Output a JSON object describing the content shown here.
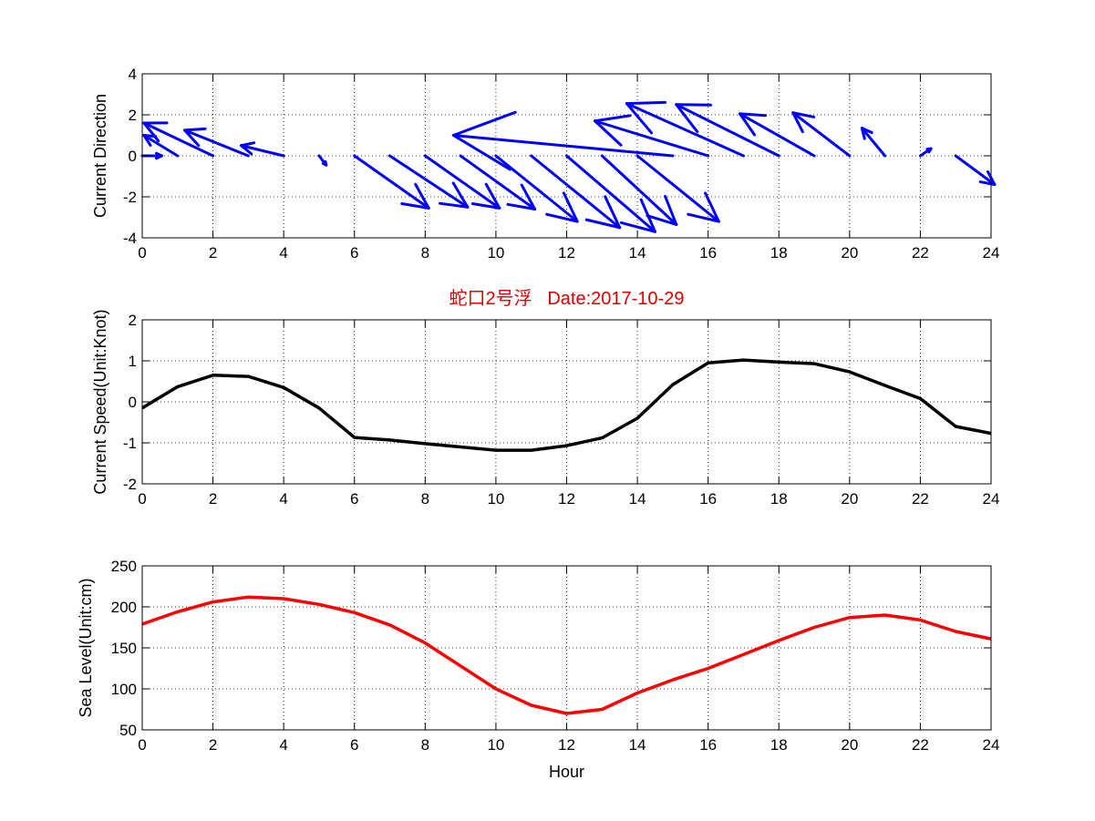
{
  "chart_data": [
    {
      "type": "quiver",
      "ylabel": "Current Direction",
      "xlim": [
        0,
        24
      ],
      "ylim": [
        -4,
        4
      ],
      "x_ticks": [
        0,
        2,
        4,
        6,
        8,
        10,
        12,
        14,
        16,
        18,
        20,
        22,
        24
      ],
      "y_ticks": [
        -4,
        -2,
        0,
        2,
        4
      ],
      "grid": true,
      "color": "#0000ff",
      "x": [
        0,
        1,
        2,
        3,
        4,
        5,
        6,
        7,
        8,
        9,
        10,
        11,
        12,
        13,
        14,
        15,
        16,
        17,
        18,
        19,
        20,
        21,
        22,
        23
      ],
      "u": [
        0.55,
        -0.95,
        -1.95,
        -1.8,
        -1.2,
        0.2,
        2.1,
        2.2,
        2.1,
        2.1,
        2.3,
        2.5,
        2.5,
        2.1,
        2.3,
        -6.2,
        -3.2,
        -3.3,
        -2.9,
        -2.1,
        -1.6,
        -0.65,
        0.3,
        1.1
      ],
      "v": [
        0.0,
        1.0,
        1.6,
        1.25,
        0.5,
        -0.45,
        -2.55,
        -2.5,
        -2.55,
        -2.6,
        -3.2,
        -3.5,
        -3.7,
        -3.35,
        -3.2,
        1.0,
        1.7,
        2.55,
        2.5,
        2.05,
        2.1,
        1.35,
        0.35,
        -1.4
      ]
    },
    {
      "type": "line",
      "title": "蛇口2号浮   Date:2017-10-29",
      "ylabel": "Current Speed(Unit:Knot)",
      "xlim": [
        0,
        24
      ],
      "ylim": [
        -2,
        2
      ],
      "x_ticks": [
        0,
        2,
        4,
        6,
        8,
        10,
        12,
        14,
        16,
        18,
        20,
        22,
        24
      ],
      "y_ticks": [
        -2,
        -1,
        0,
        1,
        2
      ],
      "grid": true,
      "color": "#000000",
      "x": [
        0,
        1,
        2,
        3,
        4,
        5,
        6,
        7,
        8,
        9,
        10,
        11,
        12,
        13,
        14,
        15,
        16,
        17,
        18,
        19,
        20,
        21,
        22,
        23,
        24
      ],
      "y": [
        -0.15,
        0.37,
        0.65,
        0.62,
        0.35,
        -0.15,
        -0.87,
        -0.93,
        -1.02,
        -1.1,
        -1.18,
        -1.18,
        -1.07,
        -0.88,
        -0.4,
        0.42,
        0.95,
        1.02,
        0.97,
        0.93,
        0.73,
        0.4,
        0.08,
        -0.6,
        -0.77
      ]
    },
    {
      "type": "line",
      "ylabel": "Sea Level(Unit:cm)",
      "xlabel": "Hour",
      "xlim": [
        0,
        24
      ],
      "ylim": [
        50,
        250
      ],
      "x_ticks": [
        0,
        2,
        4,
        6,
        8,
        10,
        12,
        14,
        16,
        18,
        20,
        22,
        24
      ],
      "y_ticks": [
        50,
        100,
        150,
        200,
        250
      ],
      "grid": true,
      "color": "#ff0000",
      "x": [
        0,
        1,
        2,
        3,
        4,
        5,
        6,
        7,
        8,
        9,
        10,
        11,
        12,
        13,
        14,
        15,
        16,
        17,
        18,
        19,
        20,
        21,
        22,
        23,
        24
      ],
      "y": [
        179,
        194,
        206,
        212,
        210,
        203,
        193,
        178,
        156,
        128,
        100,
        80,
        70,
        75,
        95,
        111,
        125,
        142,
        159,
        175,
        187,
        190,
        184,
        170,
        161
      ]
    }
  ]
}
